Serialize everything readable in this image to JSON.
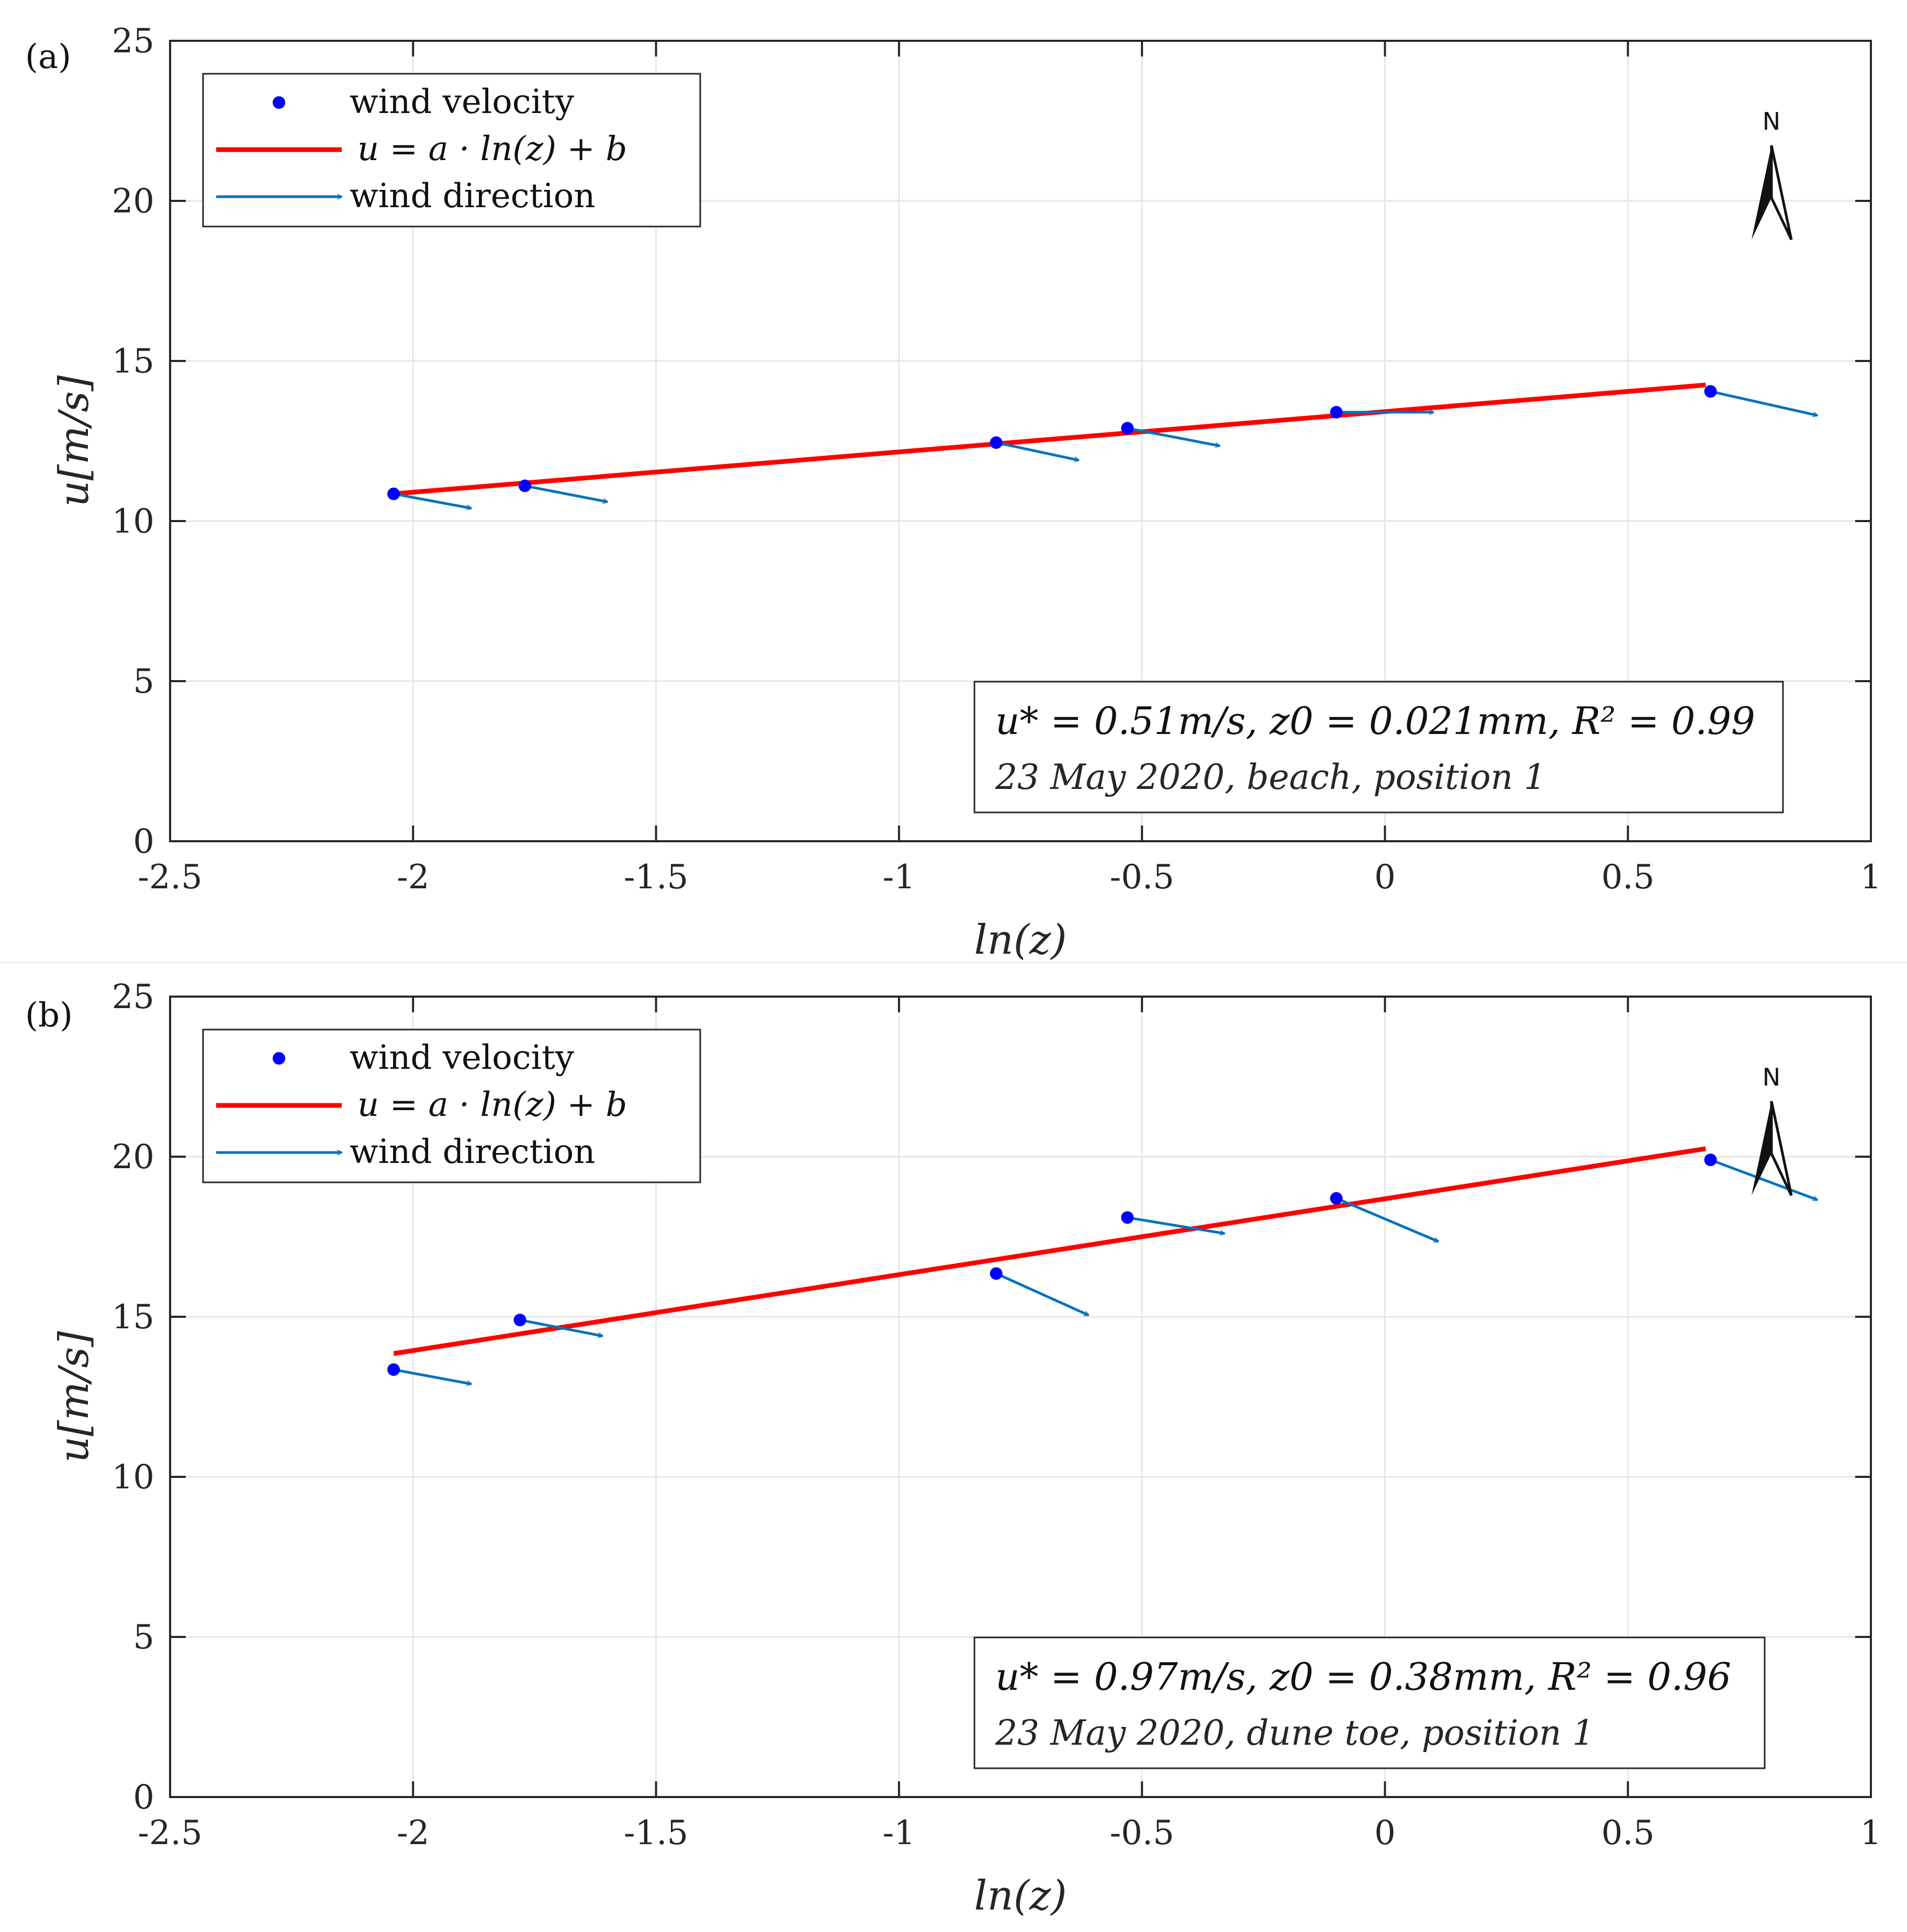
{
  "chart_data": [
    {
      "type": "scatter",
      "panel_label": "(a)",
      "xlabel": "ln(z)",
      "ylabel": "u[m/s]",
      "xlim": [
        -2.5,
        1
      ],
      "ylim": [
        0,
        25
      ],
      "xticks": [
        "-2.5",
        "-2",
        "-1.5",
        "-1",
        "-0.5",
        "0",
        "0.5",
        "1"
      ],
      "xtick_values": [
        -2.5,
        -2,
        -1.5,
        -1,
        -0.5,
        0,
        0.5,
        1
      ],
      "yticks": [
        "0",
        "5",
        "10",
        "15",
        "20",
        "25"
      ],
      "ytick_values": [
        0,
        5,
        10,
        15,
        20,
        25
      ],
      "grid": true,
      "legend_position": "top-left",
      "legend": [
        "wind velocity",
        "u = a · ln(z) + b",
        "wind direction"
      ],
      "points": {
        "x": [
          -2.04,
          -1.77,
          -0.8,
          -0.53,
          -0.1,
          0.67
        ],
        "y": [
          10.85,
          11.1,
          12.45,
          12.9,
          13.4,
          14.05
        ]
      },
      "arrows": {
        "dx": [
          0.16,
          0.17,
          0.17,
          0.19,
          0.2,
          0.22
        ],
        "dy": [
          -0.45,
          -0.5,
          -0.55,
          -0.55,
          0.0,
          -0.75
        ]
      },
      "fit_line": {
        "x": [
          -2.04,
          0.66
        ],
        "y": [
          10.85,
          14.25
        ]
      },
      "annotation_main": "u* = 0.51m/s, z0 = 0.021mm, R² = 0.99",
      "annotation_sub": "23 May 2020, beach, position 1",
      "north_label": "N",
      "colors": {
        "points": "#0000ff",
        "fit": "#ff0000",
        "arrows": "#0072bd"
      }
    },
    {
      "type": "scatter",
      "panel_label": "(b)",
      "xlabel": "ln(z)",
      "ylabel": "u[m/s]",
      "xlim": [
        -2.5,
        1
      ],
      "ylim": [
        0,
        25
      ],
      "xticks": [
        "-2.5",
        "-2",
        "-1.5",
        "-1",
        "-0.5",
        "0",
        "0.5",
        "1"
      ],
      "xtick_values": [
        -2.5,
        -2,
        -1.5,
        -1,
        -0.5,
        0,
        0.5,
        1
      ],
      "yticks": [
        "0",
        "5",
        "10",
        "15",
        "20",
        "25"
      ],
      "ytick_values": [
        0,
        5,
        10,
        15,
        20,
        25
      ],
      "grid": true,
      "legend_position": "top-left",
      "legend": [
        "wind velocity",
        "u = a · ln(z) + b",
        "wind direction"
      ],
      "points": {
        "x": [
          -2.04,
          -1.78,
          -0.8,
          -0.53,
          -0.1,
          0.67
        ],
        "y": [
          13.35,
          14.9,
          16.35,
          18.1,
          18.7,
          19.9
        ]
      },
      "arrows": {
        "dx": [
          0.16,
          0.17,
          0.19,
          0.2,
          0.21,
          0.22
        ],
        "dy": [
          -0.45,
          -0.5,
          -1.3,
          -0.5,
          -1.35,
          -1.25
        ]
      },
      "fit_line": {
        "x": [
          -2.04,
          0.66
        ],
        "y": [
          13.85,
          20.25
        ]
      },
      "annotation_main": "u* = 0.97m/s, z0 = 0.38mm, R² = 0.96",
      "annotation_sub": "23 May 2020, dune toe, position 1",
      "north_label": "N",
      "colors": {
        "points": "#0000ff",
        "fit": "#ff0000",
        "arrows": "#0072bd"
      }
    }
  ]
}
